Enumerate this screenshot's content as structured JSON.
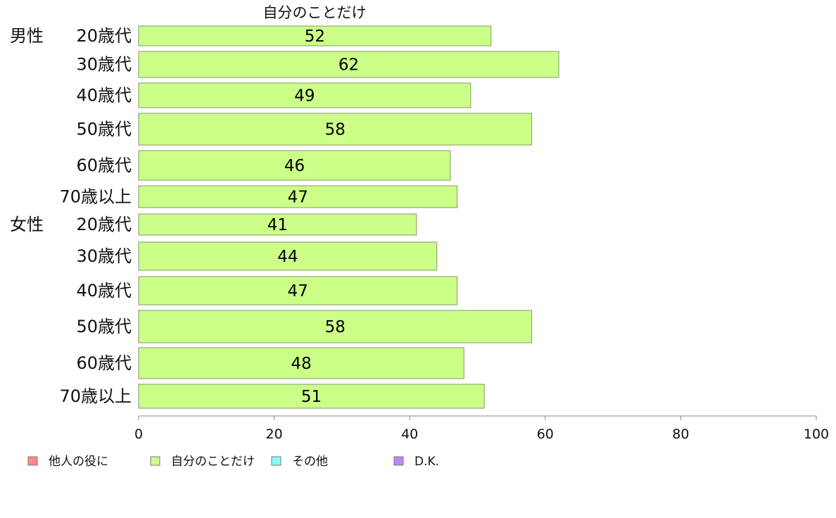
{
  "chart_data": {
    "type": "bar",
    "orientation": "horizontal",
    "title": "自分のことだけ",
    "groups": [
      {
        "label": "男性",
        "start_index": 0
      },
      {
        "label": "女性",
        "start_index": 6
      }
    ],
    "categories": [
      "20歳代",
      "30歳代",
      "40歳代",
      "50歳代",
      "60歳代",
      "70歳以上",
      "20歳代",
      "30歳代",
      "40歳代",
      "50歳代",
      "60歳代",
      "70歳以上"
    ],
    "series": [
      {
        "name": "自分のことだけ",
        "color": "#ccff88",
        "values": [
          52,
          62,
          49,
          58,
          46,
          47,
          41,
          44,
          47,
          58,
          48,
          51
        ]
      }
    ],
    "xlim": [
      0,
      100
    ],
    "xticks": [
      0,
      20,
      40,
      60,
      80,
      100
    ],
    "grid": false,
    "legend": {
      "placement": "bottom",
      "entries": [
        {
          "label": "他人の役に",
          "color": "#ff8888"
        },
        {
          "label": "自分のことだけ",
          "color": "#ccff88"
        },
        {
          "label": "その他",
          "color": "#88ffff"
        },
        {
          "label": "D.K.",
          "color": "#bb88ff"
        }
      ]
    }
  }
}
